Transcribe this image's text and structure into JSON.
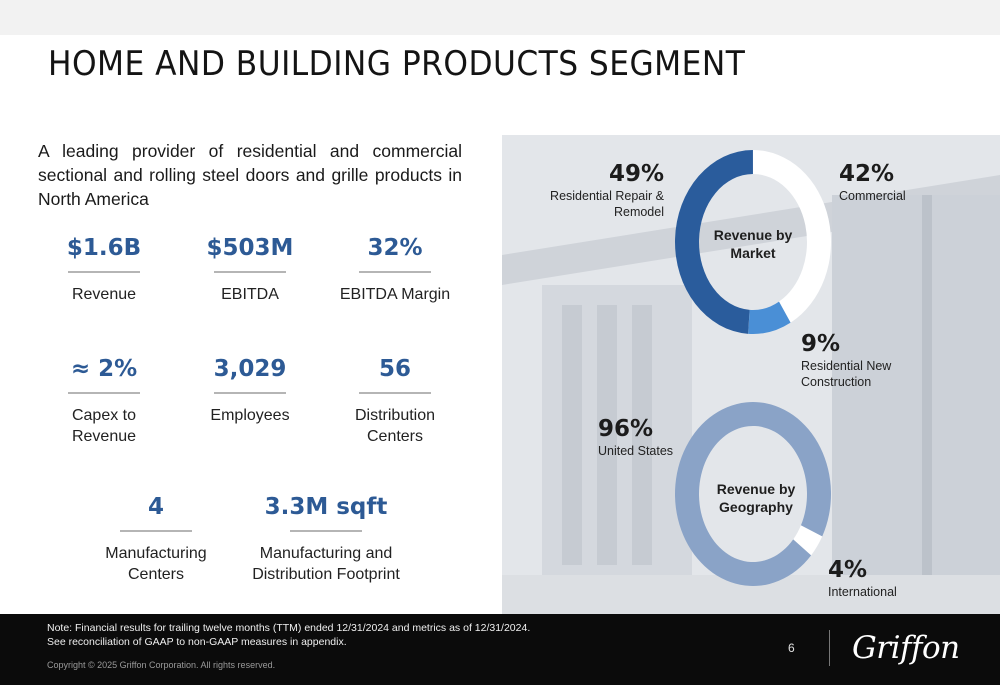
{
  "header": {
    "title": "HOME AND BUILDING PRODUCTS SEGMENT"
  },
  "intro": "A leading provider of residential and commercial sectional and rolling steel doors and grille products in North America",
  "metrics": [
    {
      "value": "$1.6B",
      "label": "Revenue"
    },
    {
      "value": "$503M",
      "label": "EBITDA"
    },
    {
      "value": "32%",
      "label": "EBITDA Margin"
    },
    {
      "value": "≈ 2%",
      "label": "Capex to Revenue"
    },
    {
      "value": "3,029",
      "label": "Employees"
    },
    {
      "value": "56",
      "label": "Distribution Centers"
    },
    {
      "value": "4",
      "label": "Manufacturing Centers"
    },
    {
      "value": "3.3M sqft",
      "label": "Manufacturing and Distribution Footprint"
    }
  ],
  "chart_data": [
    {
      "type": "pie",
      "title": "Revenue by Market",
      "categories": [
        "Residential Repair & Remodel",
        "Commercial",
        "Residential New Construction"
      ],
      "values": [
        49,
        42,
        9
      ],
      "value_labels": [
        "49%",
        "42%",
        "9%"
      ],
      "colors": [
        "#2a5c9c",
        "#ffffff",
        "#4a8fd6"
      ]
    },
    {
      "type": "pie",
      "title": "Revenue by Geography",
      "categories": [
        "United States",
        "International"
      ],
      "values": [
        96,
        4
      ],
      "value_labels": [
        "96%",
        "4%"
      ],
      "colors": [
        "#8aa3c7",
        "#ffffff"
      ]
    }
  ],
  "footer": {
    "note_line1": "Note: Financial results for trailing twelve months (TTM) ended 12/31/2024 and metrics as of 12/31/2024.",
    "note_line2": "See reconciliation of GAAP to non-GAAP measures in appendix.",
    "copyright": "Copyright © 2025 Griffon Corporation. All rights reserved.",
    "page_number": "6",
    "logo_text": "Griffon"
  }
}
